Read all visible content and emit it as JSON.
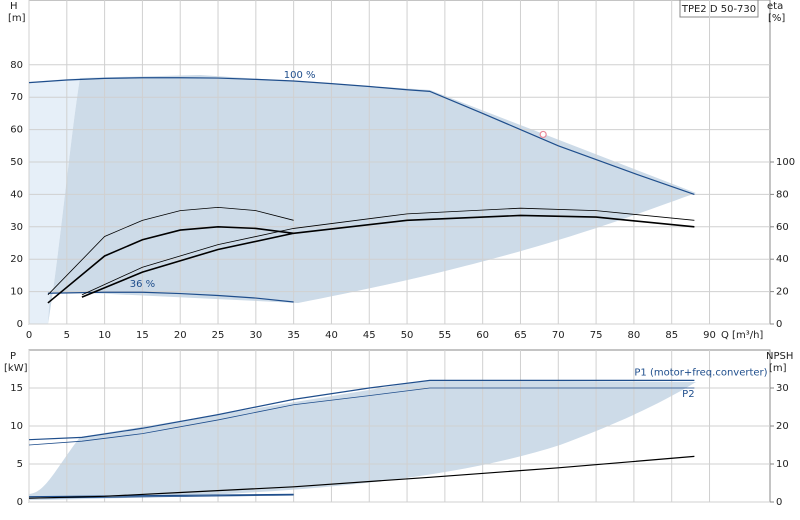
{
  "chart_data": [
    {
      "type": "line",
      "title": "TPE2 D 50-730",
      "ylabel": "H",
      "yunit": "[m]",
      "y2label": "eta",
      "y2unit": "[%]",
      "xlabel": "Q [m³/h]",
      "xlim": [
        0,
        98
      ],
      "xticks": [
        0,
        5,
        10,
        15,
        20,
        25,
        30,
        35,
        40,
        45,
        50,
        55,
        60,
        65,
        70,
        75,
        80,
        85,
        90
      ],
      "ylim": [
        0,
        100
      ],
      "yticks": [
        0,
        10,
        20,
        30,
        40,
        50,
        60,
        70,
        80
      ],
      "y2lim": [
        0,
        200
      ],
      "y2ticks": [
        0,
        20,
        40,
        60,
        80,
        100
      ],
      "grid": true,
      "series": [
        {
          "name": "100 %",
          "color": "#1f4e8c",
          "width": 1.2,
          "x": [
            0,
            5,
            10,
            15,
            20,
            25,
            30,
            35,
            40,
            45,
            50,
            53,
            60,
            70,
            80,
            88
          ],
          "values": [
            74.5,
            75.3,
            75.8,
            76,
            76,
            75.9,
            75.5,
            75,
            74.2,
            73.3,
            72.3,
            71.8,
            65,
            55,
            46.5,
            40
          ]
        },
        {
          "name": "36 %",
          "color": "#1f4e8c",
          "width": 1.2,
          "x": [
            2.5,
            10,
            15,
            20,
            25,
            30,
            35
          ],
          "values": [
            9.5,
            9.8,
            9.8,
            9.4,
            8.8,
            8,
            6.8
          ]
        },
        {
          "color": "#000000",
          "width": 1.6,
          "axis": "y2",
          "x": [
            7,
            15,
            25,
            35,
            50,
            65,
            75,
            88
          ],
          "values": [
            16.6,
            32,
            46,
            56,
            64,
            67,
            66,
            60
          ]
        },
        {
          "color": "#000000",
          "width": 0.8,
          "axis": "y2",
          "x": [
            7,
            15,
            25,
            35,
            50,
            65,
            75,
            88
          ],
          "values": [
            18,
            35,
            49,
            59,
            68,
            71.5,
            70,
            64
          ]
        },
        {
          "color": "#000000",
          "width": 1.6,
          "axis": "y2",
          "x": [
            2.5,
            10,
            15,
            20,
            25,
            30,
            35
          ],
          "values": [
            13,
            42,
            52,
            58,
            60,
            59,
            56
          ]
        },
        {
          "color": "#000000",
          "width": 0.8,
          "axis": "y2",
          "x": [
            2.5,
            10,
            15,
            20,
            25,
            30,
            35
          ],
          "values": [
            18,
            54,
            64,
            70,
            72,
            70,
            64
          ]
        }
      ],
      "marker": {
        "x": 68,
        "y": 58.5,
        "color": "#e88a9a"
      }
    },
    {
      "type": "line",
      "ylabel": "P",
      "yunit": "[kW]",
      "y2label": "NPSH",
      "y2unit": "[m]",
      "xlim": [
        0,
        98
      ],
      "xticks": [
        0,
        5,
        10,
        15,
        20,
        25,
        30,
        35,
        40,
        45,
        50,
        55,
        60,
        65,
        70,
        75,
        80,
        85,
        90
      ],
      "xtick_labels": false,
      "ylim": [
        0,
        20
      ],
      "yticks": [
        0,
        5,
        10,
        15
      ],
      "y2lim": [
        0,
        40
      ],
      "y2ticks": [
        0,
        10,
        20,
        30
      ],
      "grid": true,
      "series": [
        {
          "name": "P1 (motor+freq.converter)",
          "color": "#1f4e8c",
          "width": 1.2,
          "x": [
            0,
            7,
            15,
            25,
            35,
            45,
            53,
            88
          ],
          "values": [
            8.2,
            8.5,
            9.7,
            11.5,
            13.5,
            15,
            16,
            16
          ]
        },
        {
          "name": "P2",
          "color": "#1f4e8c",
          "width": 0.8,
          "x": [
            0,
            7,
            15,
            25,
            35,
            45,
            53,
            88
          ],
          "values": [
            7.5,
            8,
            9,
            10.8,
            12.8,
            14,
            15,
            15
          ]
        },
        {
          "color": "#1f4e8c",
          "width": 1.2,
          "x": [
            0,
            35
          ],
          "values": [
            0.7,
            1
          ]
        },
        {
          "color": "#1f4e8c",
          "width": 0.8,
          "x": [
            0,
            35
          ],
          "values": [
            0.5,
            0.9
          ]
        },
        {
          "color": "#000000",
          "width": 1.2,
          "axis": "y2",
          "x": [
            0,
            10,
            20,
            35,
            53,
            70,
            88
          ],
          "values": [
            1,
            1.5,
            2.5,
            4,
            6.5,
            9,
            12
          ]
        }
      ]
    }
  ]
}
